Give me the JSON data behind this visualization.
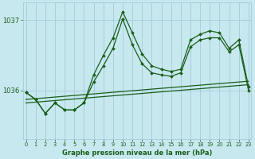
{
  "title": "Graphe pression niveau de la mer (hPa)",
  "bg_color": "#c8e8f0",
  "grid_color": "#a0ccd8",
  "line_color": "#1a5e1a",
  "x_ticks": [
    0,
    1,
    2,
    3,
    4,
    5,
    6,
    7,
    8,
    9,
    10,
    11,
    12,
    13,
    14,
    15,
    16,
    17,
    18,
    19,
    20,
    21,
    22,
    23
  ],
  "y_ticks": [
    1036,
    1037
  ],
  "ylim": [
    1035.3,
    1037.25
  ],
  "xlim": [
    -0.3,
    23.3
  ],
  "line1_x": [
    0,
    1,
    2,
    3,
    4,
    5,
    6,
    7,
    8,
    9,
    10,
    11,
    12,
    13,
    14,
    15,
    16,
    17,
    18,
    19,
    20,
    21,
    22,
    23
  ],
  "line1_y": [
    1035.97,
    1035.87,
    1035.67,
    1035.82,
    1035.72,
    1035.72,
    1035.82,
    1036.22,
    1036.5,
    1036.75,
    1037.12,
    1036.82,
    1036.52,
    1036.35,
    1036.3,
    1036.27,
    1036.3,
    1036.72,
    1036.8,
    1036.85,
    1036.82,
    1036.6,
    1036.72,
    1036.05
  ],
  "line2_x": [
    0,
    1,
    2,
    3,
    4,
    5,
    6,
    7,
    8,
    9,
    10,
    11,
    12,
    13,
    14,
    15,
    16,
    17,
    18,
    19,
    20,
    21,
    22,
    23
  ],
  "line2_y": [
    1035.97,
    1035.87,
    1035.67,
    1035.82,
    1035.72,
    1035.72,
    1035.82,
    1036.12,
    1036.35,
    1036.6,
    1037.02,
    1036.65,
    1036.38,
    1036.25,
    1036.22,
    1036.2,
    1036.25,
    1036.62,
    1036.72,
    1036.75,
    1036.75,
    1036.55,
    1036.65,
    1036.0
  ],
  "trend1_x": [
    0,
    23
  ],
  "trend1_y": [
    1035.82,
    1036.08
  ],
  "trend2_x": [
    0,
    23
  ],
  "trend2_y": [
    1035.87,
    1036.13
  ]
}
